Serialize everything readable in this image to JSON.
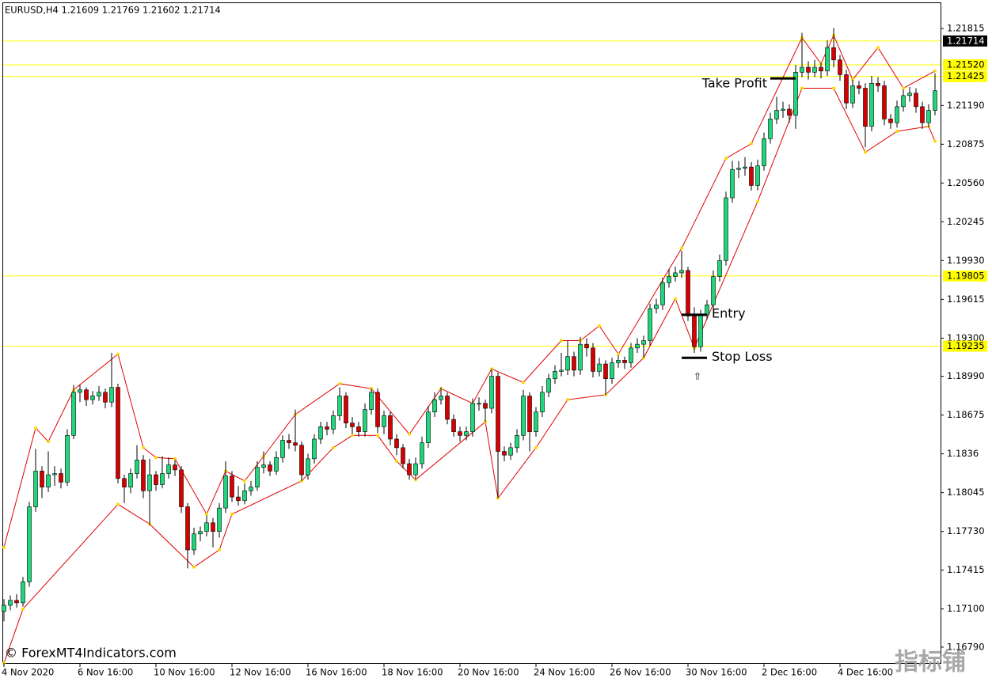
{
  "chart_data": {
    "type": "candlestick",
    "title": "EURUSD,H4  1.21609 1.21769 1.21602 1.21714",
    "watermark": "© ForexMT4Indicators.com",
    "watermark2": "指标铺",
    "bull_color": "#1fd67a",
    "bear_color": "#d60000",
    "xlim": [
      -0.125,
      147.875
    ],
    "ylim": [
      1.16661,
      1.22021
    ],
    "yticks": [
      1.21815,
      {
        "value": 1.2119,
        "label": "1.21190"
      },
      1.20875,
      {
        "value": 1.2056,
        "label": "1.20560"
      },
      1.20245,
      {
        "value": 1.1993,
        "label": "1.19930"
      },
      1.19615,
      {
        "value": 1.193,
        "label": "1.19300"
      },
      {
        "value": 1.1899,
        "label": "1.18990"
      },
      1.18675,
      1.1836,
      1.18045,
      {
        "value": 1.1773,
        "label": "1.17730"
      },
      1.17415,
      {
        "value": 1.171,
        "label": "1.17100"
      },
      {
        "value": 1.1679,
        "label": "1.16790"
      }
    ],
    "xticks": [
      {
        "value": 0,
        "label": "4 Nov 2020"
      },
      {
        "value": 12,
        "label": "6 Nov 16:00"
      },
      {
        "value": 24,
        "label": "10 Nov 16:00"
      },
      {
        "value": 36,
        "label": "12 Nov 16:00"
      },
      {
        "value": 48,
        "label": "16 Nov 16:00"
      },
      {
        "value": 60,
        "label": "18 Nov 16:00"
      },
      {
        "value": 72,
        "label": "20 Nov 16:00"
      },
      {
        "value": 84,
        "label": "24 Nov 16:00"
      },
      {
        "value": 96,
        "label": "26 Nov 16:00"
      },
      {
        "value": 108,
        "label": "30 Nov 16:00"
      },
      {
        "value": 120,
        "label": "2 Dec 16:00"
      },
      {
        "value": 132,
        "label": "4 Dec 16:00"
      }
    ],
    "levels": [
      {
        "value": 1.21714,
        "color": "#ffff00",
        "label_bg": "#000000",
        "label_color": "#ffffff"
      },
      {
        "value": 1.2152,
        "label": "1.21520",
        "color": "#ffff00",
        "label_bg": "#ffff00",
        "label_color": "#000000"
      },
      {
        "value": 1.21425,
        "color": "#ffff00",
        "label_bg": "#ffff00",
        "label_color": "#000000"
      },
      {
        "value": 1.19805,
        "color": "#ffff00",
        "label_bg": "#ffff00",
        "label_color": "#000000"
      },
      {
        "value": 1.19235,
        "color": "#ffff00",
        "label_bg": "#ffff00",
        "label_color": "#000000"
      }
    ],
    "markers": [
      {
        "name": "Take Profit",
        "x": 123,
        "value": 1.2141,
        "side": "left"
      },
      {
        "name": "Entry",
        "x": 109,
        "value": 1.1949,
        "side": "right"
      },
      {
        "name": "Stop Loss",
        "x": 109,
        "value": 1.1914,
        "side": "right"
      }
    ],
    "zigzag_color": "#e00000",
    "pivot_color": "#ffd700",
    "upper": {
      "x": [
        0,
        5,
        7,
        11,
        18,
        22,
        24,
        27,
        32,
        35,
        38,
        41,
        46,
        53,
        58,
        64,
        69,
        74,
        77,
        82,
        88,
        91,
        94,
        97,
        107,
        114,
        118,
        126,
        129,
        131,
        134,
        138,
        142,
        147
      ],
      "values": [
        1.176,
        1.1857,
        1.1846,
        1.1888,
        1.1917,
        1.1841,
        1.1833,
        1.1832,
        1.1787,
        1.1822,
        1.1814,
        1.1834,
        1.1868,
        1.1893,
        1.1889,
        1.1852,
        1.1889,
        1.1877,
        1.1905,
        1.1894,
        1.1928,
        1.1928,
        1.194,
        1.1917,
        1.2003,
        1.2076,
        1.2088,
        1.2174,
        1.2153,
        1.2176,
        1.214,
        1.2166,
        1.2133,
        1.2147
      ]
    },
    "lower": {
      "x": [
        0,
        3,
        18,
        23,
        30,
        34,
        36,
        47,
        52,
        55,
        59,
        62,
        65,
        76,
        78,
        84,
        89,
        95,
        101,
        106,
        109,
        119,
        126,
        131,
        136,
        141,
        146,
        147
      ],
      "values": [
        1.1666,
        1.171,
        1.1795,
        1.1779,
        1.1744,
        1.1758,
        1.1787,
        1.1814,
        1.1841,
        1.1851,
        1.1851,
        1.183,
        1.1815,
        1.1862,
        1.18,
        1.1841,
        1.188,
        1.1884,
        1.1914,
        1.1962,
        1.1922,
        1.2041,
        1.2133,
        1.2133,
        1.2081,
        1.2098,
        1.2102,
        1.209
      ]
    },
    "ohlc": [
      [
        1.1708,
        1.1718,
        1.17,
        1.1713
      ],
      [
        1.1713,
        1.1721,
        1.1709,
        1.1717
      ],
      [
        1.1717,
        1.1722,
        1.1711,
        1.1715
      ],
      [
        1.1715,
        1.1736,
        1.1712,
        1.1732
      ],
      [
        1.1732,
        1.1797,
        1.1728,
        1.1793
      ],
      [
        1.1793,
        1.184,
        1.1789,
        1.1822
      ],
      [
        1.1822,
        1.1826,
        1.18,
        1.1809
      ],
      [
        1.1809,
        1.1838,
        1.1805,
        1.1819
      ],
      [
        1.1819,
        1.1826,
        1.181,
        1.182
      ],
      [
        1.182,
        1.1824,
        1.1808,
        1.1813
      ],
      [
        1.1813,
        1.1856,
        1.181,
        1.1851
      ],
      [
        1.1851,
        1.1892,
        1.1848,
        1.1886
      ],
      [
        1.1886,
        1.1892,
        1.1878,
        1.1888
      ],
      [
        1.1888,
        1.189,
        1.1875,
        1.188
      ],
      [
        1.188,
        1.1887,
        1.1876,
        1.1883
      ],
      [
        1.1883,
        1.1891,
        1.1879,
        1.1886
      ],
      [
        1.1886,
        1.1889,
        1.1873,
        1.1878
      ],
      [
        1.1878,
        1.1918,
        1.1874,
        1.189
      ],
      [
        1.189,
        1.1893,
        1.1812,
        1.1816
      ],
      [
        1.1816,
        1.1819,
        1.1796,
        1.1809
      ],
      [
        1.1809,
        1.1824,
        1.1804,
        1.182
      ],
      [
        1.182,
        1.1843,
        1.1816,
        1.1831
      ],
      [
        1.1831,
        1.1835,
        1.18,
        1.1806
      ],
      [
        1.1806,
        1.1832,
        1.1778,
        1.1819
      ],
      [
        1.1819,
        1.1822,
        1.1806,
        1.1811
      ],
      [
        1.1811,
        1.1834,
        1.1808,
        1.182
      ],
      [
        1.182,
        1.1833,
        1.1816,
        1.1827
      ],
      [
        1.1827,
        1.1831,
        1.1818,
        1.1823
      ],
      [
        1.1823,
        1.1826,
        1.1788,
        1.1793
      ],
      [
        1.1793,
        1.1796,
        1.1743,
        1.1758
      ],
      [
        1.1758,
        1.1776,
        1.1754,
        1.1771
      ],
      [
        1.1771,
        1.1777,
        1.1765,
        1.1773
      ],
      [
        1.1773,
        1.1786,
        1.1769,
        1.178
      ],
      [
        1.178,
        1.1784,
        1.176,
        1.1773
      ],
      [
        1.1773,
        1.1796,
        1.1768,
        1.1792
      ],
      [
        1.1792,
        1.183,
        1.1788,
        1.1818
      ],
      [
        1.1818,
        1.1822,
        1.1797,
        1.1801
      ],
      [
        1.1801,
        1.181,
        1.1794,
        1.1798
      ],
      [
        1.1798,
        1.1812,
        1.1795,
        1.1806
      ],
      [
        1.1806,
        1.1814,
        1.1802,
        1.1809
      ],
      [
        1.1809,
        1.183,
        1.1806,
        1.1825
      ],
      [
        1.1825,
        1.1838,
        1.182,
        1.1827
      ],
      [
        1.1827,
        1.183,
        1.1818,
        1.1822
      ],
      [
        1.1822,
        1.1838,
        1.1819,
        1.1833
      ],
      [
        1.1833,
        1.1851,
        1.1829,
        1.1847
      ],
      [
        1.1847,
        1.1852,
        1.184,
        1.1845
      ],
      [
        1.1845,
        1.1872,
        1.1838,
        1.1843
      ],
      [
        1.1843,
        1.1846,
        1.1814,
        1.1819
      ],
      [
        1.1819,
        1.1836,
        1.1815,
        1.1832
      ],
      [
        1.1832,
        1.1852,
        1.1828,
        1.1848
      ],
      [
        1.1848,
        1.1862,
        1.1844,
        1.1858
      ],
      [
        1.1858,
        1.1862,
        1.1851,
        1.1856
      ],
      [
        1.1856,
        1.1871,
        1.1852,
        1.1867
      ],
      [
        1.1867,
        1.189,
        1.1863,
        1.1883
      ],
      [
        1.1883,
        1.1886,
        1.1857,
        1.1861
      ],
      [
        1.1861,
        1.1866,
        1.1852,
        1.1858
      ],
      [
        1.1858,
        1.1862,
        1.185,
        1.1854
      ],
      [
        1.1854,
        1.1877,
        1.185,
        1.1872
      ],
      [
        1.1872,
        1.1889,
        1.1868,
        1.1886
      ],
      [
        1.1886,
        1.1889,
        1.1853,
        1.1858
      ],
      [
        1.1858,
        1.1871,
        1.1852,
        1.1867
      ],
      [
        1.1867,
        1.187,
        1.1843,
        1.1848
      ],
      [
        1.1848,
        1.1852,
        1.1835,
        1.1841
      ],
      [
        1.1841,
        1.1844,
        1.1824,
        1.1828
      ],
      [
        1.1828,
        1.1832,
        1.1815,
        1.1819
      ],
      [
        1.1819,
        1.1833,
        1.1815,
        1.1828
      ],
      [
        1.1828,
        1.185,
        1.1824,
        1.1845
      ],
      [
        1.1845,
        1.1875,
        1.1841,
        1.187
      ],
      [
        1.187,
        1.1886,
        1.1866,
        1.188
      ],
      [
        1.188,
        1.189,
        1.1876,
        1.1883
      ],
      [
        1.1883,
        1.1886,
        1.186,
        1.1864
      ],
      [
        1.1864,
        1.1868,
        1.185,
        1.1854
      ],
      [
        1.1854,
        1.1858,
        1.1846,
        1.1851
      ],
      [
        1.1851,
        1.1858,
        1.1847,
        1.1854
      ],
      [
        1.1854,
        1.1881,
        1.185,
        1.1877
      ],
      [
        1.1877,
        1.1882,
        1.1871,
        1.1877
      ],
      [
        1.1877,
        1.188,
        1.1862,
        1.1873
      ],
      [
        1.1873,
        1.1905,
        1.1869,
        1.1899
      ],
      [
        1.1899,
        1.1902,
        1.18,
        1.1838
      ],
      [
        1.1838,
        1.1842,
        1.183,
        1.1835
      ],
      [
        1.1835,
        1.1845,
        1.1831,
        1.1841
      ],
      [
        1.1841,
        1.1856,
        1.1837,
        1.1851
      ],
      [
        1.1851,
        1.1888,
        1.1847,
        1.1883
      ],
      [
        1.1883,
        1.1886,
        1.1838,
        1.1854
      ],
      [
        1.1854,
        1.1874,
        1.185,
        1.187
      ],
      [
        1.187,
        1.1891,
        1.1866,
        1.1886
      ],
      [
        1.1886,
        1.1901,
        1.1882,
        1.1897
      ],
      [
        1.1897,
        1.1908,
        1.1893,
        1.1903
      ],
      [
        1.1903,
        1.1918,
        1.1899,
        1.1904
      ],
      [
        1.1904,
        1.1928,
        1.19,
        1.1915
      ],
      [
        1.1915,
        1.1919,
        1.1899,
        1.1904
      ],
      [
        1.1904,
        1.1931,
        1.19,
        1.1925
      ],
      [
        1.1925,
        1.193,
        1.1915,
        1.1922
      ],
      [
        1.1922,
        1.1926,
        1.1898,
        1.1903
      ],
      [
        1.1903,
        1.1914,
        1.1899,
        1.1909
      ],
      [
        1.1909,
        1.1912,
        1.1884,
        1.1897
      ],
      [
        1.1897,
        1.1914,
        1.1893,
        1.191
      ],
      [
        1.191,
        1.1916,
        1.1906,
        1.1912
      ],
      [
        1.1912,
        1.1915,
        1.1905,
        1.191
      ],
      [
        1.191,
        1.1926,
        1.1906,
        1.1922
      ],
      [
        1.1922,
        1.193,
        1.1918,
        1.1925
      ],
      [
        1.1925,
        1.1932,
        1.1914,
        1.1928
      ],
      [
        1.1928,
        1.1958,
        1.1924,
        1.1954
      ],
      [
        1.1954,
        1.1962,
        1.195,
        1.1957
      ],
      [
        1.1957,
        1.1979,
        1.1953,
        1.1975
      ],
      [
        1.1975,
        1.1986,
        1.1971,
        1.198
      ],
      [
        1.198,
        1.1988,
        1.1976,
        1.1983
      ],
      [
        1.1983,
        1.2001,
        1.1979,
        1.1985
      ],
      [
        1.1985,
        1.1988,
        1.1944,
        1.1948
      ],
      [
        1.1948,
        1.1955,
        1.1918,
        1.1923
      ],
      [
        1.1923,
        1.1953,
        1.1919,
        1.1949
      ],
      [
        1.1949,
        1.1961,
        1.1945,
        1.1957
      ],
      [
        1.1957,
        1.1985,
        1.1953,
        1.198
      ],
      [
        1.198,
        1.1998,
        1.1976,
        1.1993
      ],
      [
        1.1993,
        1.2049,
        1.1989,
        1.2044
      ],
      [
        1.2044,
        1.2074,
        1.204,
        1.2067
      ],
      [
        1.2067,
        1.2074,
        1.206,
        1.2068
      ],
      [
        1.2068,
        1.2077,
        1.2062,
        1.2069
      ],
      [
        1.2069,
        1.2073,
        1.205,
        1.2054
      ],
      [
        1.2054,
        1.2075,
        1.205,
        1.207
      ],
      [
        1.207,
        1.2097,
        1.2066,
        1.2092
      ],
      [
        1.2092,
        1.2113,
        1.2088,
        1.2108
      ],
      [
        1.2108,
        1.2126,
        1.2104,
        1.2115
      ],
      [
        1.2115,
        1.2122,
        1.2109,
        1.2116
      ],
      [
        1.2116,
        1.212,
        1.2105,
        1.2111
      ],
      [
        1.2111,
        1.2152,
        1.21,
        1.2146
      ],
      [
        1.2146,
        1.2178,
        1.2142,
        1.215
      ],
      [
        1.215,
        1.2155,
        1.214,
        1.2146
      ],
      [
        1.2146,
        1.2156,
        1.2142,
        1.215
      ],
      [
        1.215,
        1.2154,
        1.2141,
        1.2147
      ],
      [
        1.2147,
        1.2172,
        1.2143,
        1.2166
      ],
      [
        1.2166,
        1.2182,
        1.215,
        1.2156
      ],
      [
        1.2156,
        1.216,
        1.2139,
        1.2144
      ],
      [
        1.2144,
        1.2148,
        1.2116,
        1.2121
      ],
      [
        1.2121,
        1.214,
        1.2117,
        1.2135
      ],
      [
        1.2135,
        1.2139,
        1.2128,
        1.2133
      ],
      [
        1.2133,
        1.2137,
        1.2085,
        1.2102
      ],
      [
        1.2102,
        1.2143,
        1.2098,
        1.2137
      ],
      [
        1.2137,
        1.2142,
        1.213,
        1.2135
      ],
      [
        1.2135,
        1.2139,
        1.2103,
        1.2108
      ],
      [
        1.2108,
        1.2112,
        1.21,
        1.2105
      ],
      [
        1.2105,
        1.2123,
        1.2101,
        1.2118
      ],
      [
        1.2118,
        1.2132,
        1.2114,
        1.2127
      ],
      [
        1.2127,
        1.2134,
        1.2122,
        1.2129
      ],
      [
        1.2129,
        1.2133,
        1.2113,
        1.2118
      ],
      [
        1.2118,
        1.2122,
        1.21,
        1.2105
      ],
      [
        1.2105,
        1.212,
        1.2101,
        1.2115
      ],
      [
        1.2115,
        1.2145,
        1.2111,
        1.2131
      ]
    ]
  }
}
